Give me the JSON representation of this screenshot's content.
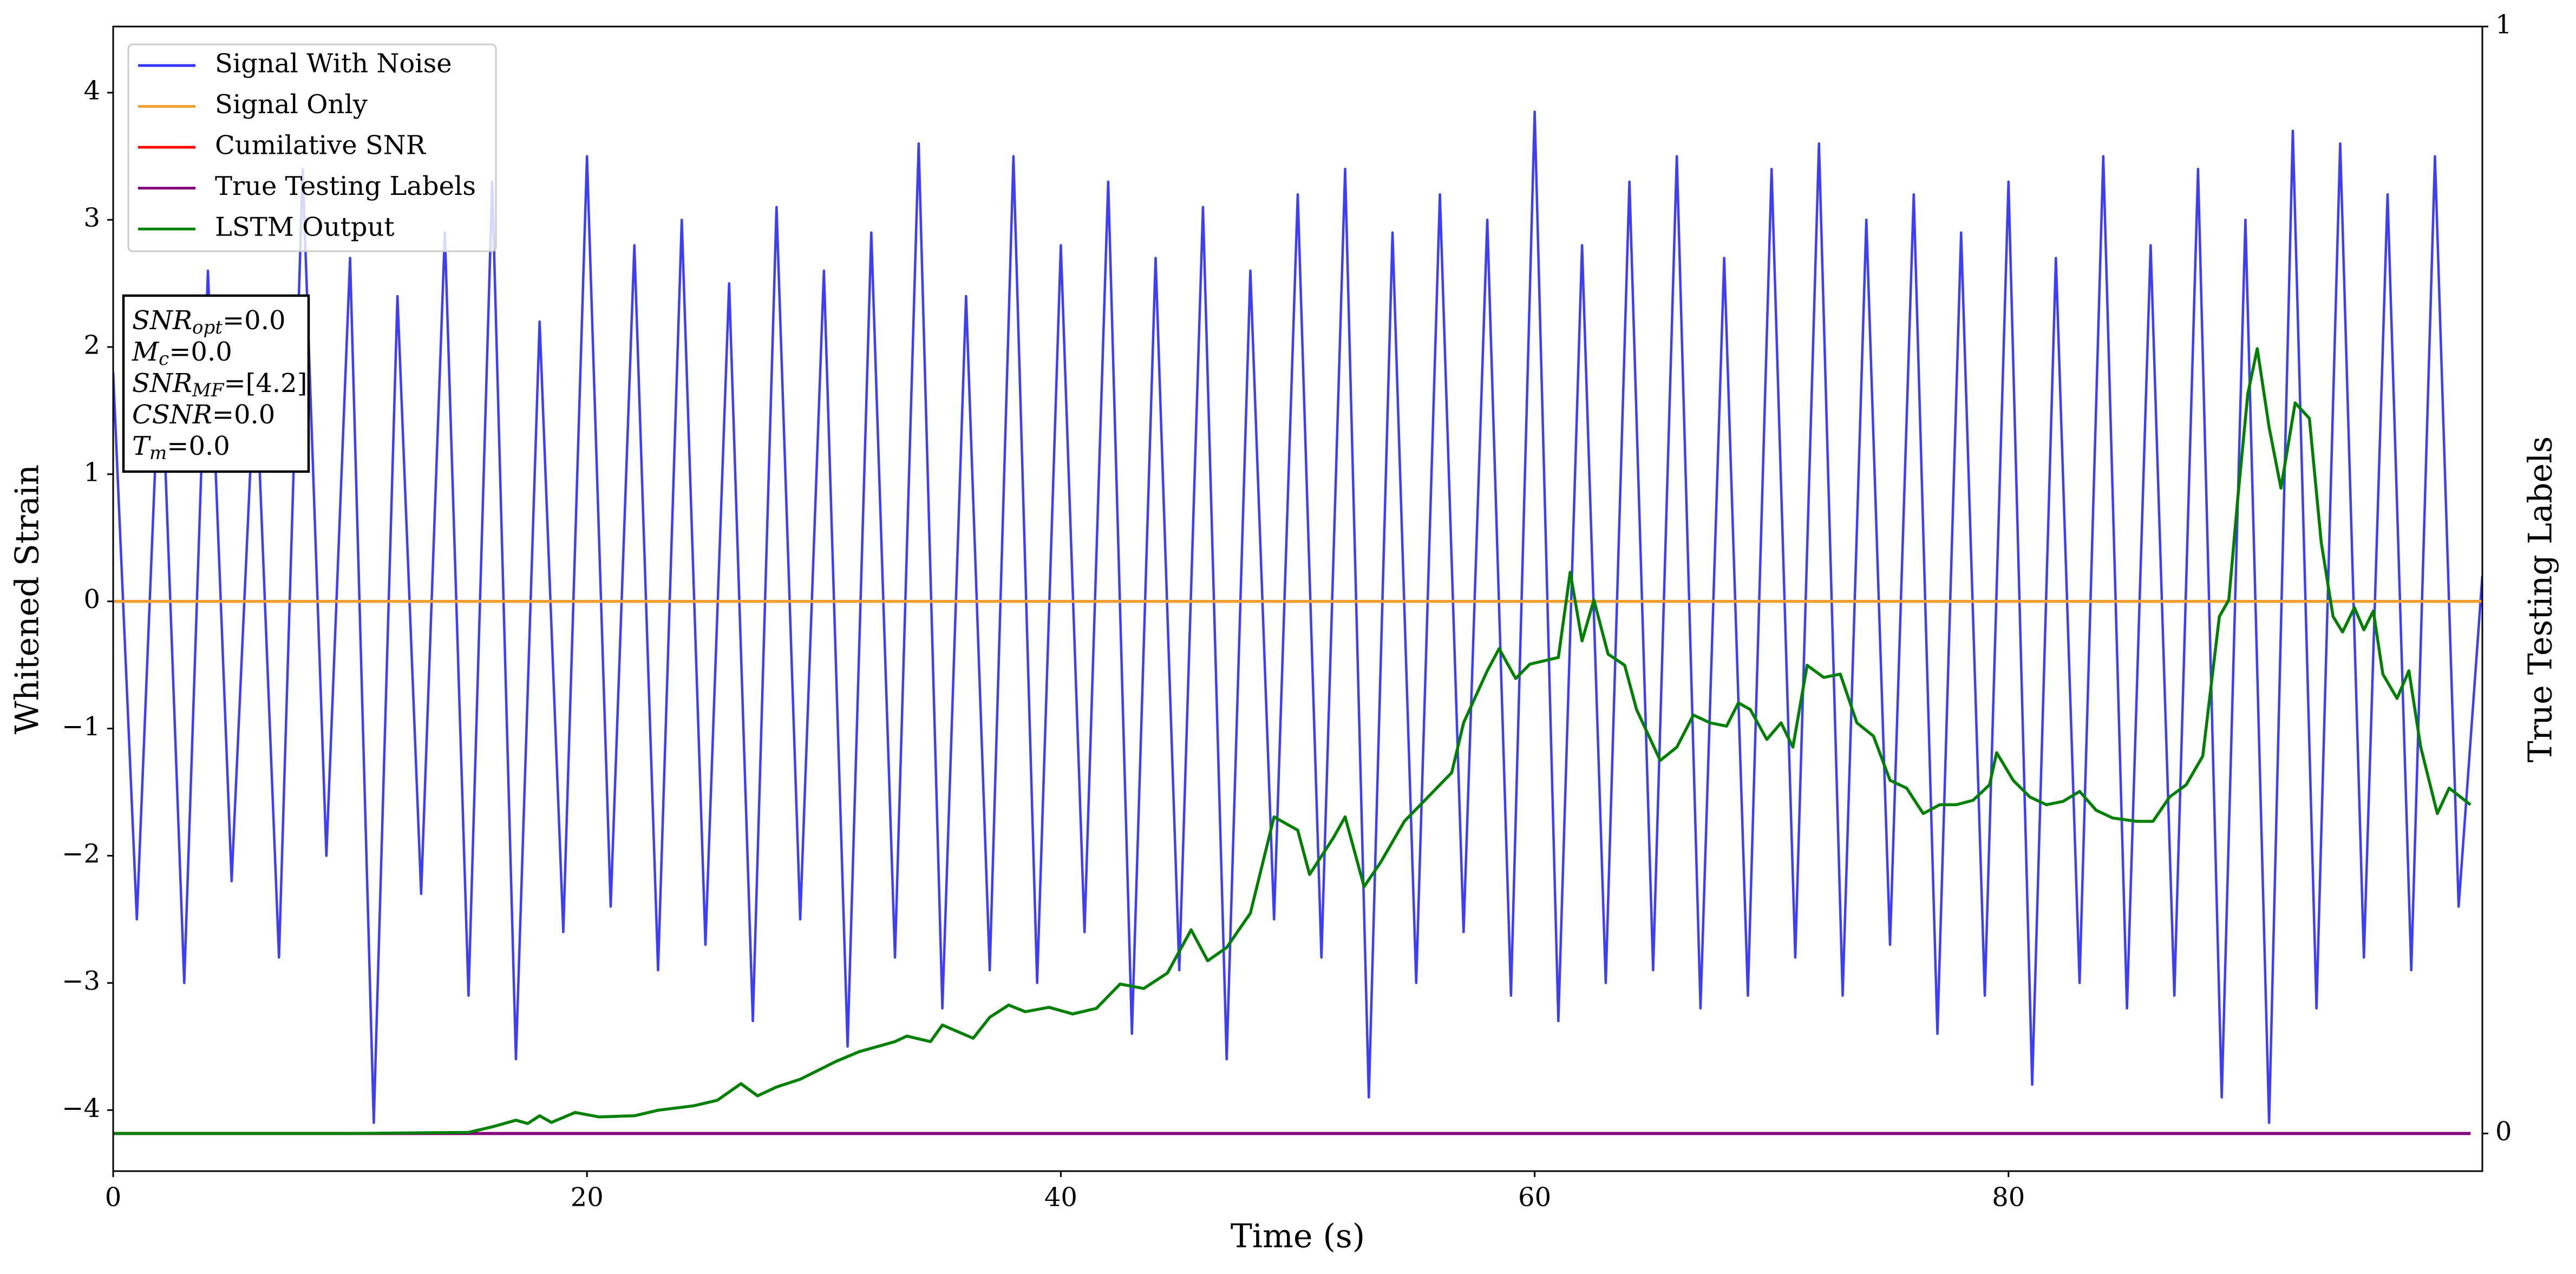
{
  "chart_data": {
    "type": "line",
    "xlabel": "Time (s)",
    "ylabel": "Whitened Strain",
    "y2label": "True Testing Labels",
    "xlim": [
      0,
      100
    ],
    "ylim": [
      -4.48,
      4.52
    ],
    "y2lim": [
      -0.034,
      1.0
    ],
    "xticks": [
      0,
      20,
      40,
      60,
      80
    ],
    "yticks": [
      {
        "value": -4,
        "label": "−4"
      },
      {
        "value": -3,
        "label": "−3"
      },
      {
        "value": -2,
        "label": "−2"
      },
      {
        "value": -1,
        "label": "−1"
      },
      0,
      1,
      2,
      3,
      4
    ],
    "y2ticks": [
      0,
      1
    ],
    "legend": "upper left",
    "series": [
      {
        "name": "Signal With Noise",
        "color": "#3333ff",
        "axis": "y",
        "x": [
          0,
          1,
          2,
          3,
          4,
          5,
          6,
          7,
          8,
          9,
          10,
          11,
          12,
          13,
          14,
          15,
          16,
          17,
          18,
          19,
          20,
          21,
          22,
          23,
          24,
          25,
          26,
          27,
          28,
          29,
          30,
          31,
          32,
          33,
          34,
          35,
          36,
          37,
          38,
          39,
          40,
          41,
          42,
          43,
          44,
          45,
          46,
          47,
          48,
          49,
          50,
          51,
          52,
          53,
          54,
          55,
          56,
          57,
          58,
          59,
          60,
          61,
          62,
          63,
          64,
          65,
          66,
          67,
          68,
          69,
          70,
          71,
          72,
          73,
          74,
          75,
          76,
          77,
          78,
          79,
          80,
          81,
          82,
          83,
          84,
          85,
          86,
          87,
          88,
          89,
          90,
          91,
          92,
          93,
          94,
          95,
          96,
          97,
          98,
          99,
          100
        ],
        "values": [
          1.8,
          -2.5,
          2.1,
          -3.0,
          2.6,
          -2.2,
          1.9,
          -2.8,
          3.4,
          -2.0,
          2.7,
          -4.1,
          2.4,
          -2.3,
          2.9,
          -3.1,
          3.3,
          -3.6,
          2.2,
          -2.6,
          3.5,
          -2.4,
          2.8,
          -2.9,
          3.0,
          -2.7,
          2.5,
          -3.3,
          3.1,
          -2.5,
          2.6,
          -3.5,
          2.9,
          -2.8,
          3.6,
          -3.2,
          2.4,
          -2.9,
          3.5,
          -3.0,
          2.8,
          -2.6,
          3.3,
          -3.4,
          2.7,
          -2.9,
          3.1,
          -3.6,
          2.6,
          -2.5,
          3.2,
          -2.8,
          3.4,
          -3.9,
          2.9,
          -3.0,
          3.2,
          -2.6,
          3.0,
          -3.1,
          3.85,
          -3.3,
          2.8,
          -3.0,
          3.3,
          -2.9,
          3.5,
          -3.2,
          2.7,
          -3.1,
          3.4,
          -2.8,
          3.6,
          -3.1,
          3.0,
          -2.7,
          3.2,
          -3.4,
          2.9,
          -3.1,
          3.3,
          -3.8,
          2.7,
          -3.0,
          3.5,
          -3.2,
          2.8,
          -3.1,
          3.4,
          -3.9,
          3.0,
          -4.1,
          3.7,
          -3.2,
          3.6,
          -2.8,
          3.2,
          -2.9,
          3.5,
          -2.4,
          0.2
        ]
      },
      {
        "name": "Signal Only",
        "color": "#f0a030",
        "axis": "y",
        "x": [
          0,
          100
        ],
        "values": [
          0,
          0
        ]
      },
      {
        "name": "Cumilative SNR",
        "color": "#ff0000",
        "axis": "y2",
        "x": [
          0,
          99.5
        ],
        "values": [
          0,
          0
        ]
      },
      {
        "name": "True Testing Labels",
        "color": "#800080",
        "axis": "y2",
        "x": [
          0,
          99.5
        ],
        "values": [
          0,
          0
        ]
      },
      {
        "name": "LSTM Output",
        "color": "#008000",
        "axis": "y2",
        "x": [
          0,
          5,
          10,
          15,
          16,
          17,
          17.5,
          18,
          18.5,
          19.5,
          20.5,
          22,
          23,
          24.5,
          25.5,
          26.5,
          27.2,
          28,
          29,
          30.5,
          31.5,
          33,
          33.5,
          34.5,
          35,
          36.3,
          37,
          37.8,
          38.5,
          39.5,
          40.5,
          41.5,
          42.5,
          43.5,
          44.5,
          45.5,
          46.2,
          47,
          48,
          49,
          50,
          50.5,
          51.5,
          52,
          52.8,
          53.5,
          54.5,
          55.5,
          56.5,
          57,
          58,
          58.5,
          59.2,
          59.8,
          61,
          61.5,
          62,
          62.5,
          63.1,
          63.8,
          64.3,
          65.3,
          66,
          66.7,
          67.4,
          68.1,
          68.6,
          69.1,
          69.8,
          70.4,
          70.9,
          71.5,
          72.2,
          72.9,
          73.6,
          74.3,
          75,
          75.7,
          76.4,
          77.1,
          77.8,
          78.5,
          79.2,
          79.5,
          80.2,
          80.9,
          81.6,
          82.3,
          83,
          83.7,
          84.4,
          85.4,
          86.1,
          86.8,
          87.5,
          88.2,
          88.9,
          89.3,
          89.7,
          90.1,
          90.5,
          91,
          91.5,
          92.1,
          92.7,
          93.2,
          93.7,
          94.1,
          94.6,
          95,
          95.4,
          95.8,
          96.4,
          96.9,
          97.4,
          98.1,
          98.6,
          99.5
        ],
        "values": [
          0,
          0,
          0,
          0.001,
          0.006,
          0.012,
          0.009,
          0.016,
          0.01,
          0.019,
          0.015,
          0.016,
          0.021,
          0.025,
          0.03,
          0.045,
          0.034,
          0.042,
          0.049,
          0.065,
          0.074,
          0.083,
          0.088,
          0.083,
          0.098,
          0.086,
          0.105,
          0.116,
          0.11,
          0.114,
          0.108,
          0.113,
          0.135,
          0.131,
          0.145,
          0.184,
          0.156,
          0.168,
          0.199,
          0.286,
          0.274,
          0.234,
          0.267,
          0.286,
          0.223,
          0.245,
          0.282,
          0.304,
          0.326,
          0.371,
          0.418,
          0.438,
          0.411,
          0.424,
          0.43,
          0.507,
          0.445,
          0.482,
          0.433,
          0.423,
          0.383,
          0.337,
          0.349,
          0.378,
          0.371,
          0.368,
          0.389,
          0.383,
          0.356,
          0.371,
          0.349,
          0.423,
          0.412,
          0.415,
          0.371,
          0.359,
          0.319,
          0.312,
          0.289,
          0.297,
          0.297,
          0.301,
          0.315,
          0.344,
          0.319,
          0.304,
          0.297,
          0.3,
          0.309,
          0.292,
          0.285,
          0.282,
          0.282,
          0.304,
          0.315,
          0.341,
          0.467,
          0.482,
          0.579,
          0.668,
          0.709,
          0.638,
          0.583,
          0.66,
          0.646,
          0.534,
          0.467,
          0.453,
          0.475,
          0.455,
          0.472,
          0.415,
          0.393,
          0.418,
          0.349,
          0.289,
          0.312,
          0.297
        ]
      }
    ],
    "annotation": [
      {
        "symbol": "SNR",
        "subscript": "opt",
        "text": "=0.0"
      },
      {
        "symbol": "M",
        "subscript": "c",
        "text": "=0.0"
      },
      {
        "symbol": "SNR",
        "subscript": "MF",
        "text": "=[4.2]"
      },
      {
        "symbol": "CSNR",
        "text": "=0.0"
      },
      {
        "symbol": "T",
        "subscript": "m",
        "text": "=0.0"
      }
    ]
  }
}
